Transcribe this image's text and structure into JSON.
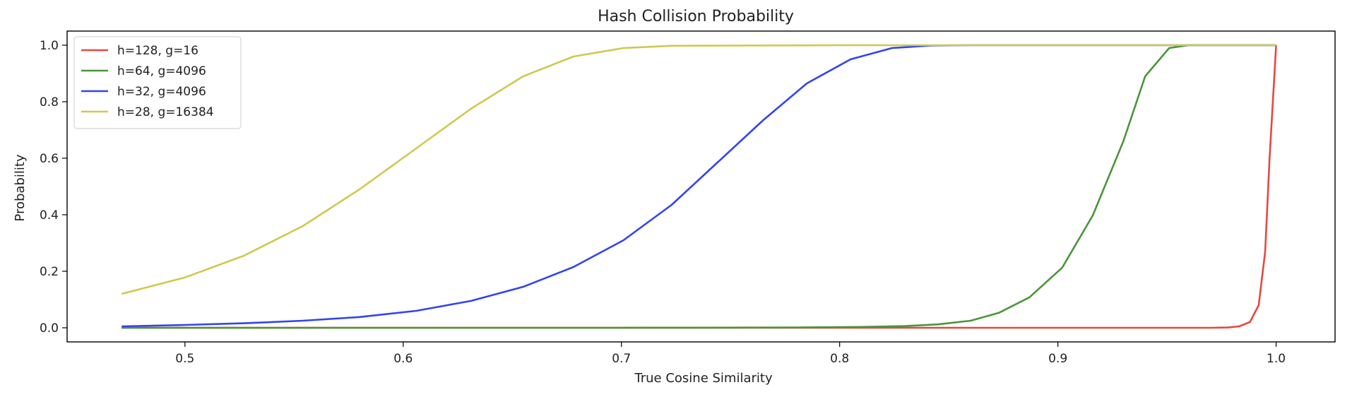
{
  "chart_data": {
    "type": "line",
    "title": "Hash Collision Probability",
    "xlabel": "True Cosine Similarity",
    "ylabel": "Probability",
    "xlim": [
      0.446,
      1.027
    ],
    "ylim": [
      -0.05,
      1.05
    ],
    "xticks": [
      0.5,
      0.6,
      0.7,
      0.8,
      0.9,
      1.0
    ],
    "xtick_labels": [
      "0.5",
      "0.6",
      "0.7",
      "0.8",
      "0.9",
      "1.0"
    ],
    "yticks": [
      0.0,
      0.2,
      0.4,
      0.6,
      0.8,
      1.0
    ],
    "ytick_labels": [
      "0.0",
      "0.2",
      "0.4",
      "0.6",
      "0.8",
      "1.0"
    ],
    "grid": false,
    "legend_position": "top-left",
    "series": [
      {
        "name": "h=128, g=16",
        "color": "#e8473f",
        "x": [
          0.471,
          0.6,
          0.8,
          0.9,
          0.95,
          0.97,
          0.978,
          0.983,
          0.988,
          0.992,
          0.995,
          0.997,
          1.0
        ],
        "y": [
          0.0,
          0.0,
          0.0,
          0.0,
          0.0,
          0.0,
          0.001,
          0.005,
          0.02,
          0.08,
          0.27,
          0.6,
          1.0
        ]
      },
      {
        "name": "h=64, g=4096",
        "color": "#4a963a",
        "x": [
          0.471,
          0.7,
          0.78,
          0.81,
          0.83,
          0.845,
          0.86,
          0.873,
          0.887,
          0.902,
          0.916,
          0.93,
          0.94,
          0.951,
          0.96,
          0.98,
          1.0
        ],
        "y": [
          0.0,
          0.0,
          0.001,
          0.003,
          0.006,
          0.012,
          0.025,
          0.053,
          0.108,
          0.213,
          0.398,
          0.66,
          0.89,
          0.99,
          1.0,
          1.0,
          1.0
        ],
        "line": "solid"
      },
      {
        "name": "h=32, g=4096",
        "color": "#3344ee",
        "x": [
          0.471,
          0.5,
          0.527,
          0.554,
          0.58,
          0.606,
          0.631,
          0.655,
          0.678,
          0.701,
          0.723,
          0.744,
          0.765,
          0.785,
          0.805,
          0.824,
          0.842,
          0.86,
          0.9,
          1.0
        ],
        "y": [
          0.005,
          0.01,
          0.016,
          0.025,
          0.038,
          0.06,
          0.095,
          0.145,
          0.215,
          0.31,
          0.435,
          0.585,
          0.735,
          0.865,
          0.95,
          0.99,
          0.999,
          1.0,
          1.0,
          1.0
        ]
      },
      {
        "name": "h=28, g=16384",
        "color": "#cfc94e",
        "x": [
          0.471,
          0.5,
          0.527,
          0.554,
          0.58,
          0.606,
          0.631,
          0.655,
          0.678,
          0.701,
          0.723,
          0.8,
          1.0
        ],
        "y": [
          0.12,
          0.178,
          0.255,
          0.36,
          0.49,
          0.635,
          0.775,
          0.89,
          0.96,
          0.99,
          0.998,
          1.0,
          1.0
        ]
      }
    ]
  }
}
